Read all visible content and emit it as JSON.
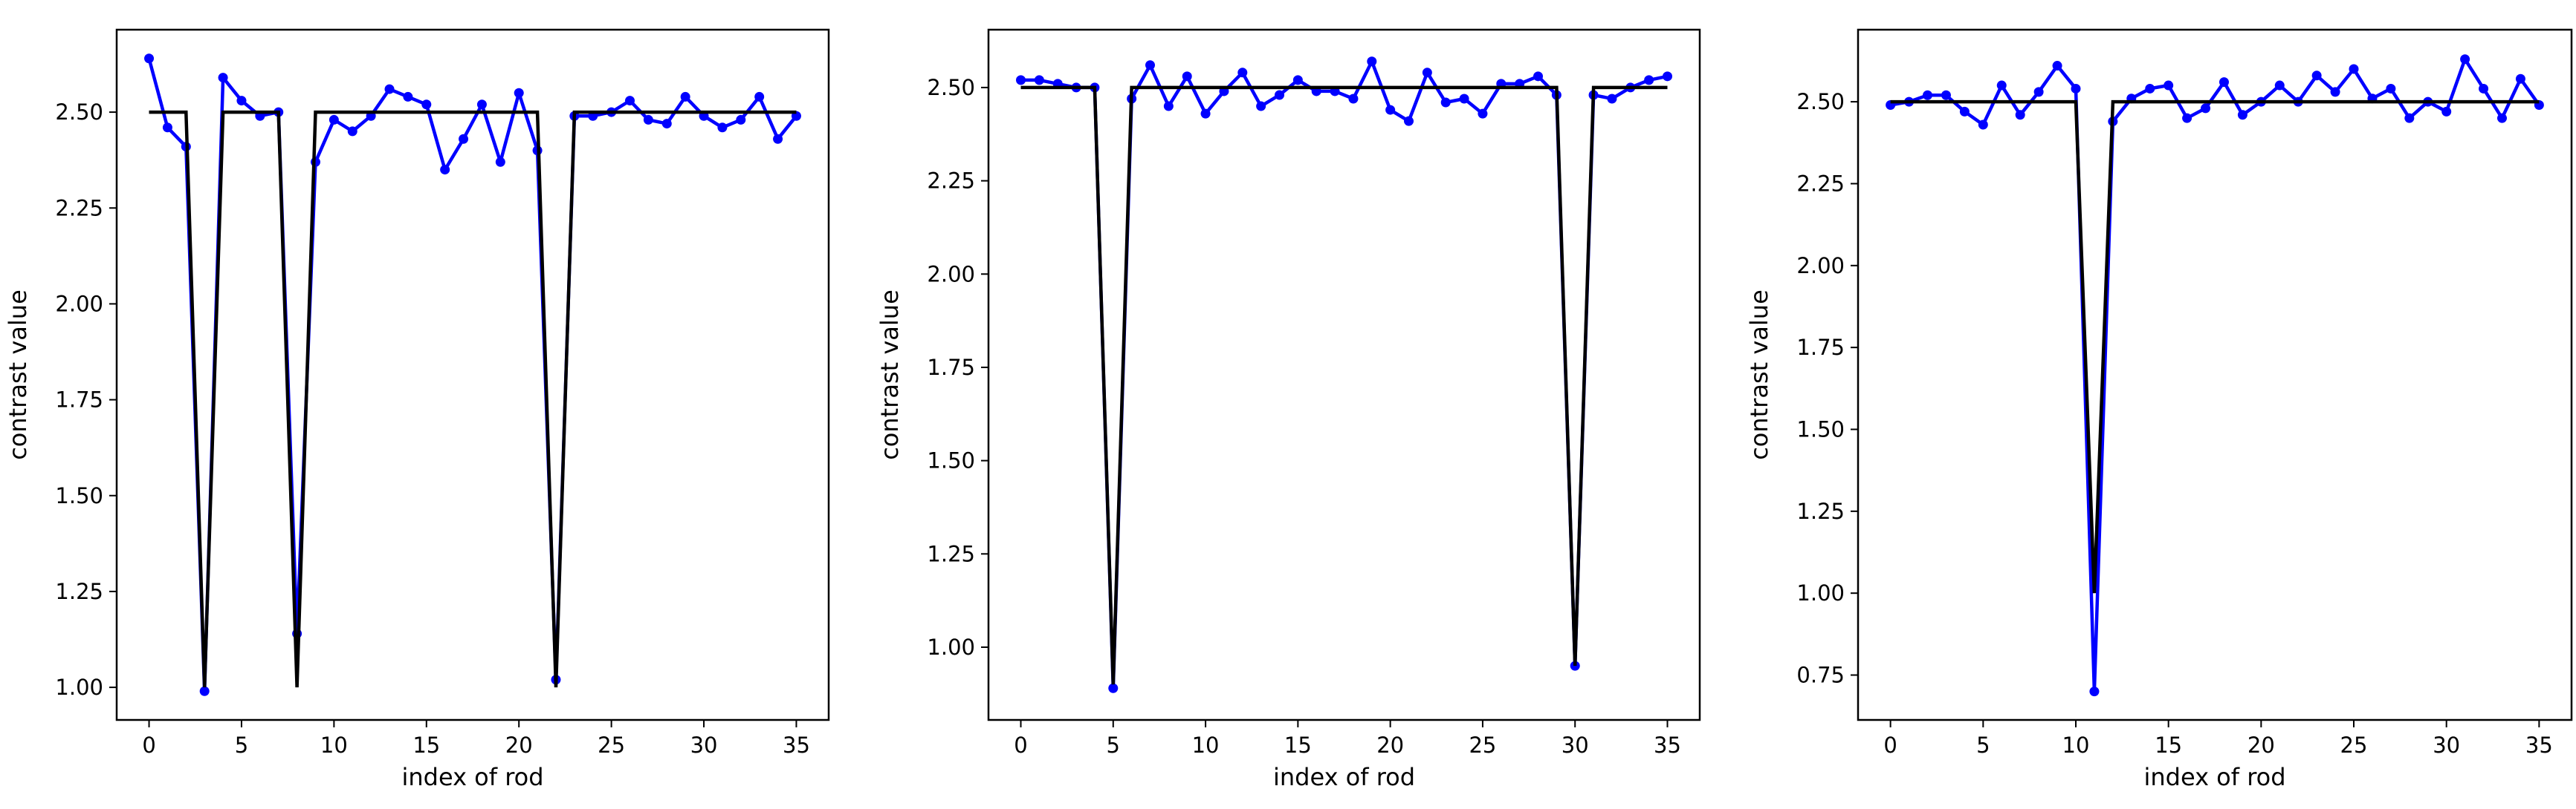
{
  "colors": {
    "measured": "#0000ff",
    "reference": "#000000"
  },
  "chart_data": [
    {
      "type": "line",
      "xlabel": "index of rod",
      "ylabel": "contrast value",
      "xlim": [
        -1.75,
        36.75
      ],
      "ylim": [
        0.915,
        2.715
      ],
      "xticks": [
        0,
        5,
        10,
        15,
        20,
        25,
        30,
        35
      ],
      "xtick_labels": [
        "0",
        "5",
        "10",
        "15",
        "20",
        "25",
        "30",
        "35"
      ],
      "yticks": [
        1.0,
        1.25,
        1.5,
        1.75,
        2.0,
        2.25,
        2.5
      ],
      "ytick_labels": [
        "1.00",
        "1.25",
        "1.50",
        "1.75",
        "2.00",
        "2.25",
        "2.50"
      ],
      "grid": false,
      "series": [
        {
          "style": "line-with-markers",
          "color": "#0000ff",
          "x": [
            0,
            1,
            2,
            3,
            4,
            5,
            6,
            7,
            8,
            9,
            10,
            11,
            12,
            13,
            14,
            15,
            16,
            17,
            18,
            19,
            20,
            21,
            22,
            23,
            24,
            25,
            26,
            27,
            28,
            29,
            30,
            31,
            32,
            33,
            34,
            35
          ],
          "y": [
            2.64,
            2.46,
            2.41,
            0.99,
            2.59,
            2.53,
            2.49,
            2.5,
            1.14,
            2.37,
            2.48,
            2.45,
            2.49,
            2.56,
            2.54,
            2.52,
            2.35,
            2.43,
            2.52,
            2.37,
            2.55,
            2.4,
            1.02,
            2.49,
            2.49,
            2.5,
            2.53,
            2.48,
            2.47,
            2.54,
            2.49,
            2.46,
            2.48,
            2.54,
            2.43,
            2.49
          ]
        },
        {
          "style": "step-line",
          "color": "#000000",
          "x": [
            0,
            1,
            2,
            2,
            3,
            3,
            4,
            4,
            5,
            6,
            7,
            7,
            8,
            8,
            9,
            9,
            10,
            11,
            12,
            13,
            14,
            15,
            16,
            17,
            18,
            19,
            20,
            21,
            21,
            22,
            22,
            23,
            23,
            24,
            25,
            26,
            27,
            28,
            29,
            30,
            31,
            32,
            33,
            34,
            35
          ],
          "y": [
            2.5,
            2.5,
            2.5,
            2.5,
            1.0,
            1.0,
            2.5,
            2.5,
            2.5,
            2.5,
            2.5,
            2.5,
            1.0,
            1.0,
            2.5,
            2.5,
            2.5,
            2.5,
            2.5,
            2.5,
            2.5,
            2.5,
            2.5,
            2.5,
            2.5,
            2.5,
            2.5,
            2.5,
            2.5,
            1.0,
            1.0,
            2.5,
            2.5,
            2.5,
            2.5,
            2.5,
            2.5,
            2.5,
            2.5,
            2.5,
            2.5,
            2.5,
            2.5,
            2.5,
            2.5
          ]
        }
      ]
    },
    {
      "type": "line",
      "xlabel": "index of rod",
      "ylabel": "contrast value",
      "xlim": [
        -1.75,
        36.75
      ],
      "ylim": [
        0.805,
        2.655
      ],
      "xticks": [
        0,
        5,
        10,
        15,
        20,
        25,
        30,
        35
      ],
      "xtick_labels": [
        "0",
        "5",
        "10",
        "15",
        "20",
        "25",
        "30",
        "35"
      ],
      "yticks": [
        1.0,
        1.25,
        1.5,
        1.75,
        2.0,
        2.25,
        2.5
      ],
      "ytick_labels": [
        "1.00",
        "1.25",
        "1.50",
        "1.75",
        "2.00",
        "2.25",
        "2.50"
      ],
      "grid": false,
      "series": [
        {
          "style": "line-with-markers",
          "color": "#0000ff",
          "x": [
            0,
            1,
            2,
            3,
            4,
            5,
            6,
            7,
            8,
            9,
            10,
            11,
            12,
            13,
            14,
            15,
            16,
            17,
            18,
            19,
            20,
            21,
            22,
            23,
            24,
            25,
            26,
            27,
            28,
            29,
            30,
            31,
            32,
            33,
            34,
            35
          ],
          "y": [
            2.52,
            2.52,
            2.51,
            2.5,
            2.5,
            0.89,
            2.47,
            2.56,
            2.45,
            2.53,
            2.43,
            2.49,
            2.54,
            2.45,
            2.48,
            2.52,
            2.49,
            2.49,
            2.47,
            2.57,
            2.44,
            2.41,
            2.54,
            2.46,
            2.47,
            2.43,
            2.51,
            2.51,
            2.53,
            2.48,
            0.95,
            2.48,
            2.47,
            2.5,
            2.52,
            2.53
          ]
        },
        {
          "style": "step-line",
          "color": "#000000",
          "x": [
            0,
            1,
            2,
            3,
            4,
            4,
            5,
            5,
            6,
            6,
            7,
            8,
            9,
            10,
            11,
            12,
            13,
            14,
            15,
            16,
            17,
            18,
            19,
            20,
            21,
            22,
            23,
            24,
            25,
            26,
            27,
            28,
            29,
            29,
            30,
            30,
            31,
            31,
            32,
            33,
            34,
            35
          ],
          "y": [
            2.5,
            2.5,
            2.5,
            2.5,
            2.5,
            2.5,
            0.9,
            0.9,
            2.5,
            2.5,
            2.5,
            2.5,
            2.5,
            2.5,
            2.5,
            2.5,
            2.5,
            2.5,
            2.5,
            2.5,
            2.5,
            2.5,
            2.5,
            2.5,
            2.5,
            2.5,
            2.5,
            2.5,
            2.5,
            2.5,
            2.5,
            2.5,
            2.5,
            2.5,
            0.95,
            0.95,
            2.5,
            2.5,
            2.5,
            2.5,
            2.5,
            2.5
          ]
        }
      ]
    },
    {
      "type": "line",
      "xlabel": "index of rod",
      "ylabel": "contrast value",
      "xlim": [
        -1.75,
        36.75
      ],
      "ylim": [
        0.613,
        2.72
      ],
      "xticks": [
        0,
        5,
        10,
        15,
        20,
        25,
        30,
        35
      ],
      "xtick_labels": [
        "0",
        "5",
        "10",
        "15",
        "20",
        "25",
        "30",
        "35"
      ],
      "yticks": [
        0.75,
        1.0,
        1.25,
        1.5,
        1.75,
        2.0,
        2.25,
        2.5
      ],
      "ytick_labels": [
        "0.75",
        "1.00",
        "1.25",
        "1.50",
        "1.75",
        "2.00",
        "2.25",
        "2.50"
      ],
      "grid": false,
      "series": [
        {
          "style": "line-with-markers",
          "color": "#0000ff",
          "x": [
            0,
            1,
            2,
            3,
            4,
            5,
            6,
            7,
            8,
            9,
            10,
            11,
            12,
            13,
            14,
            15,
            16,
            17,
            18,
            19,
            20,
            21,
            22,
            23,
            24,
            25,
            26,
            27,
            28,
            29,
            30,
            31,
            32,
            33,
            34,
            35
          ],
          "y": [
            2.49,
            2.5,
            2.52,
            2.52,
            2.47,
            2.43,
            2.55,
            2.46,
            2.53,
            2.61,
            2.54,
            0.7,
            2.44,
            2.51,
            2.54,
            2.55,
            2.45,
            2.48,
            2.56,
            2.46,
            2.5,
            2.55,
            2.5,
            2.58,
            2.53,
            2.6,
            2.51,
            2.54,
            2.45,
            2.5,
            2.47,
            2.63,
            2.54,
            2.45,
            2.57,
            2.49
          ]
        },
        {
          "style": "step-line",
          "color": "#000000",
          "x": [
            0,
            1,
            2,
            3,
            4,
            5,
            6,
            7,
            8,
            9,
            10,
            10,
            11,
            11,
            12,
            12,
            13,
            14,
            15,
            16,
            17,
            18,
            19,
            20,
            21,
            22,
            23,
            24,
            25,
            26,
            27,
            28,
            29,
            30,
            31,
            32,
            33,
            34,
            35
          ],
          "y": [
            2.5,
            2.5,
            2.5,
            2.5,
            2.5,
            2.5,
            2.5,
            2.5,
            2.5,
            2.5,
            2.5,
            2.5,
            1.0,
            1.0,
            2.5,
            2.5,
            2.5,
            2.5,
            2.5,
            2.5,
            2.5,
            2.5,
            2.5,
            2.5,
            2.5,
            2.5,
            2.5,
            2.5,
            2.5,
            2.5,
            2.5,
            2.5,
            2.5,
            2.5,
            2.5,
            2.5,
            2.5,
            2.5,
            2.5
          ]
        }
      ]
    }
  ]
}
